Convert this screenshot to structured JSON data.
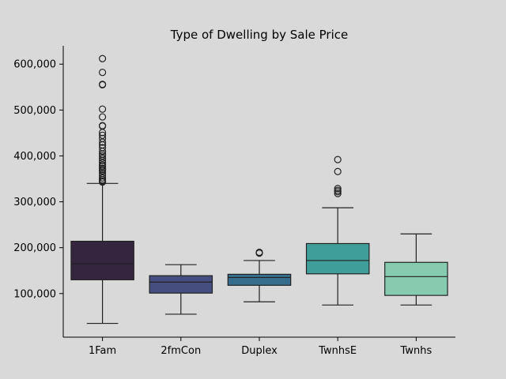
{
  "chart_data": {
    "type": "box",
    "title": "Type of Dwelling by Sale Price",
    "xlabel": "",
    "ylabel": "",
    "ylim": [
      5000,
      640000
    ],
    "yticks": [
      100000,
      200000,
      300000,
      400000,
      500000,
      600000
    ],
    "ytick_labels": [
      "100,000",
      "200,000",
      "300,000",
      "400,000",
      "500,000",
      "600,000"
    ],
    "grid": false,
    "categories": [
      "1Fam",
      "2fmCon",
      "Duplex",
      "TwnhsE",
      "Twnhs"
    ],
    "boxes": [
      {
        "category": "1Fam",
        "whisker_low": 35000,
        "q1": 130000,
        "median": 165000,
        "q3": 214000,
        "whisker_high": 340000,
        "color": "#35253e",
        "outliers": [
          612000,
          582000,
          556000,
          555000,
          502000,
          485000,
          466000,
          465000,
          451000,
          445000,
          438000,
          430000,
          424000,
          418000,
          410000,
          404000,
          400000,
          395000,
          390000,
          385000,
          380000,
          377000,
          373000,
          370000,
          367000,
          362000,
          357000,
          352000,
          348000,
          345000,
          343000
        ]
      },
      {
        "category": "2fmCon",
        "whisker_low": 55000,
        "q1": 101000,
        "median": 125000,
        "q3": 139000,
        "whisker_high": 163000,
        "color": "#454e7f",
        "outliers": []
      },
      {
        "category": "Duplex",
        "whisker_low": 82000,
        "q1": 118000,
        "median": 135000,
        "q3": 142000,
        "whisker_high": 172000,
        "color": "#376e8d",
        "outliers": [
          190000,
          188000
        ]
      },
      {
        "category": "TwnhsE",
        "whisker_low": 75000,
        "q1": 143000,
        "median": 172000,
        "q3": 209000,
        "whisker_high": 287000,
        "color": "#3f9e9a",
        "outliers": [
          392000,
          366000,
          329000,
          325000,
          322000,
          318000
        ]
      },
      {
        "category": "Twnhs",
        "whisker_low": 75000,
        "q1": 96000,
        "median": 137000,
        "q3": 168000,
        "whisker_high": 230000,
        "color": "#86cbb0",
        "outliers": []
      }
    ]
  }
}
